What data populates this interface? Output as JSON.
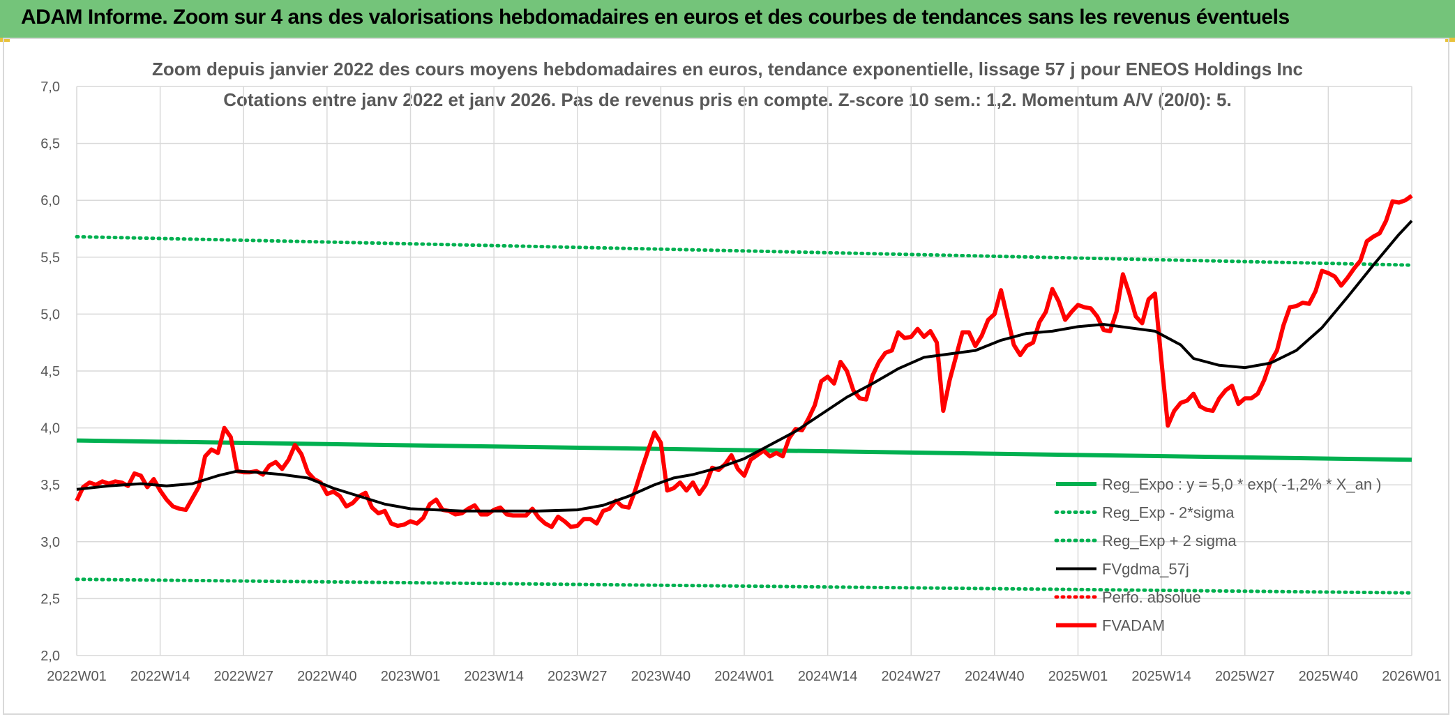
{
  "banner": {
    "title": "ADAM Informe. Zoom sur 4 ans des valorisations hebdomadaires en euros et des courbes de tendances sans les revenus éventuels"
  },
  "colors": {
    "banner_bg": "#74c47a",
    "regression": "#00b050",
    "fvgdma": "#000000",
    "fvadam": "#ff0000",
    "perfo": "#ff0000"
  },
  "chart_data": {
    "type": "line",
    "title": "Zoom depuis janvier 2022 des cours moyens hebdomadaires en euros, tendance exponentielle, lissage 57 j pour ENEOS Holdings Inc",
    "subtitle": "Cotations entre janv 2022 et janv 2026. Pas de revenus pris en compte. Z-score 10 sem.: 1,2. Momentum A/V (20/0): 5.",
    "xlabel": "",
    "ylabel": "",
    "ylim": [
      2.0,
      7.0
    ],
    "yticks": [
      "2,0",
      "2,5",
      "3,0",
      "3,5",
      "4,0",
      "4,5",
      "5,0",
      "5,5",
      "6,0",
      "6,5",
      "7,0"
    ],
    "xticks": [
      "2022W01",
      "2022W14",
      "2022W27",
      "2022W40",
      "2023W01",
      "2023W14",
      "2023W27",
      "2023W40",
      "2024W01",
      "2024W14",
      "2024W27",
      "2024W40",
      "2025W01",
      "2025W14",
      "2025W27",
      "2025W40",
      "2026W01"
    ],
    "grid": true,
    "legend_position": "bottom-right",
    "series": [
      {
        "name": "Reg_Expo : y = 5,0 * exp( -1,2% *  X_an )",
        "style": "solid-thick",
        "color": "#00b050",
        "points": [
          [
            0,
            3.89
          ],
          [
            208,
            3.72
          ]
        ]
      },
      {
        "name": "Reg_Exp - 2*sigma",
        "style": "dotted",
        "color": "#00b050",
        "points": [
          [
            0,
            2.67
          ],
          [
            208,
            2.55
          ]
        ]
      },
      {
        "name": "Reg_Exp + 2 sigma",
        "style": "dotted",
        "color": "#00b050",
        "points": [
          [
            0,
            5.68
          ],
          [
            208,
            5.43
          ]
        ]
      },
      {
        "name": "FVgdma_57j",
        "style": "solid",
        "color": "#000000",
        "points": [
          [
            0,
            3.46
          ],
          [
            5,
            3.49
          ],
          [
            10,
            3.51
          ],
          [
            14,
            3.49
          ],
          [
            18,
            3.51
          ],
          [
            22,
            3.58
          ],
          [
            25,
            3.62
          ],
          [
            28,
            3.61
          ],
          [
            32,
            3.59
          ],
          [
            36,
            3.56
          ],
          [
            40,
            3.47
          ],
          [
            44,
            3.4
          ],
          [
            48,
            3.33
          ],
          [
            52,
            3.29
          ],
          [
            56,
            3.28
          ],
          [
            60,
            3.27
          ],
          [
            66,
            3.27
          ],
          [
            72,
            3.27
          ],
          [
            78,
            3.28
          ],
          [
            82,
            3.32
          ],
          [
            86,
            3.4
          ],
          [
            90,
            3.5
          ],
          [
            93,
            3.56
          ],
          [
            96,
            3.59
          ],
          [
            100,
            3.65
          ],
          [
            104,
            3.73
          ],
          [
            108,
            3.85
          ],
          [
            112,
            3.97
          ],
          [
            116,
            4.12
          ],
          [
            120,
            4.27
          ],
          [
            124,
            4.39
          ],
          [
            128,
            4.52
          ],
          [
            132,
            4.62
          ],
          [
            136,
            4.65
          ],
          [
            140,
            4.68
          ],
          [
            144,
            4.77
          ],
          [
            148,
            4.83
          ],
          [
            152,
            4.85
          ],
          [
            156,
            4.89
          ],
          [
            160,
            4.91
          ],
          [
            164,
            4.88
          ],
          [
            168,
            4.85
          ],
          [
            170,
            4.79
          ],
          [
            172,
            4.73
          ],
          [
            174,
            4.61
          ],
          [
            178,
            4.55
          ],
          [
            182,
            4.53
          ],
          [
            186,
            4.57
          ],
          [
            190,
            4.68
          ],
          [
            194,
            4.88
          ],
          [
            198,
            5.15
          ],
          [
            202,
            5.43
          ],
          [
            206,
            5.7
          ],
          [
            208,
            5.82
          ]
        ]
      },
      {
        "name": "Perfo. absolue",
        "style": "dotted",
        "color": "#ff0000",
        "points": []
      },
      {
        "name": "FVADAM",
        "style": "solid-thick",
        "color": "#ff0000",
        "points": [
          [
            0,
            3.36
          ],
          [
            1,
            3.48
          ],
          [
            2,
            3.52
          ],
          [
            3,
            3.5
          ],
          [
            4,
            3.53
          ],
          [
            5,
            3.51
          ],
          [
            6,
            3.53
          ],
          [
            7,
            3.52
          ],
          [
            8,
            3.49
          ],
          [
            9,
            3.6
          ],
          [
            10,
            3.58
          ],
          [
            11,
            3.48
          ],
          [
            12,
            3.55
          ],
          [
            13,
            3.45
          ],
          [
            14,
            3.37
          ],
          [
            15,
            3.31
          ],
          [
            16,
            3.29
          ],
          [
            17,
            3.28
          ],
          [
            18,
            3.38
          ],
          [
            19,
            3.48
          ],
          [
            20,
            3.75
          ],
          [
            21,
            3.81
          ],
          [
            22,
            3.78
          ],
          [
            23,
            4.0
          ],
          [
            24,
            3.92
          ],
          [
            25,
            3.62
          ],
          [
            26,
            3.61
          ],
          [
            27,
            3.61
          ],
          [
            28,
            3.62
          ],
          [
            29,
            3.59
          ],
          [
            30,
            3.67
          ],
          [
            31,
            3.7
          ],
          [
            32,
            3.64
          ],
          [
            33,
            3.72
          ],
          [
            34,
            3.85
          ],
          [
            35,
            3.77
          ],
          [
            36,
            3.61
          ],
          [
            37,
            3.55
          ],
          [
            38,
            3.52
          ],
          [
            39,
            3.42
          ],
          [
            40,
            3.44
          ],
          [
            41,
            3.4
          ],
          [
            42,
            3.31
          ],
          [
            43,
            3.34
          ],
          [
            44,
            3.4
          ],
          [
            45,
            3.43
          ],
          [
            46,
            3.3
          ],
          [
            47,
            3.25
          ],
          [
            48,
            3.27
          ],
          [
            49,
            3.16
          ],
          [
            50,
            3.14
          ],
          [
            51,
            3.15
          ],
          [
            52,
            3.18
          ],
          [
            53,
            3.16
          ],
          [
            54,
            3.21
          ],
          [
            55,
            3.33
          ],
          [
            56,
            3.37
          ],
          [
            57,
            3.28
          ],
          [
            58,
            3.27
          ],
          [
            59,
            3.24
          ],
          [
            60,
            3.25
          ],
          [
            61,
            3.29
          ],
          [
            62,
            3.32
          ],
          [
            63,
            3.24
          ],
          [
            64,
            3.24
          ],
          [
            65,
            3.28
          ],
          [
            66,
            3.3
          ],
          [
            67,
            3.24
          ],
          [
            68,
            3.23
          ],
          [
            69,
            3.23
          ],
          [
            70,
            3.23
          ],
          [
            71,
            3.29
          ],
          [
            72,
            3.21
          ],
          [
            73,
            3.16
          ],
          [
            74,
            3.13
          ],
          [
            75,
            3.22
          ],
          [
            76,
            3.18
          ],
          [
            77,
            3.13
          ],
          [
            78,
            3.14
          ],
          [
            79,
            3.2
          ],
          [
            80,
            3.2
          ],
          [
            81,
            3.16
          ],
          [
            82,
            3.27
          ],
          [
            83,
            3.29
          ],
          [
            84,
            3.36
          ],
          [
            85,
            3.31
          ],
          [
            86,
            3.3
          ],
          [
            87,
            3.45
          ],
          [
            88,
            3.63
          ],
          [
            89,
            3.8
          ],
          [
            90,
            3.96
          ],
          [
            91,
            3.87
          ],
          [
            92,
            3.45
          ],
          [
            93,
            3.47
          ],
          [
            94,
            3.52
          ],
          [
            95,
            3.45
          ],
          [
            96,
            3.52
          ],
          [
            97,
            3.42
          ],
          [
            98,
            3.5
          ],
          [
            99,
            3.65
          ],
          [
            100,
            3.63
          ],
          [
            101,
            3.68
          ],
          [
            102,
            3.76
          ],
          [
            103,
            3.64
          ],
          [
            104,
            3.58
          ],
          [
            105,
            3.72
          ],
          [
            106,
            3.76
          ],
          [
            107,
            3.8
          ],
          [
            108,
            3.75
          ],
          [
            109,
            3.78
          ],
          [
            110,
            3.75
          ],
          [
            111,
            3.91
          ],
          [
            112,
            3.99
          ],
          [
            113,
            3.98
          ],
          [
            114,
            4.08
          ],
          [
            115,
            4.2
          ],
          [
            116,
            4.41
          ],
          [
            117,
            4.45
          ],
          [
            118,
            4.39
          ],
          [
            119,
            4.58
          ],
          [
            120,
            4.5
          ],
          [
            121,
            4.33
          ],
          [
            122,
            4.26
          ],
          [
            123,
            4.25
          ],
          [
            124,
            4.46
          ],
          [
            125,
            4.58
          ],
          [
            126,
            4.66
          ],
          [
            127,
            4.68
          ],
          [
            128,
            4.84
          ],
          [
            129,
            4.79
          ],
          [
            130,
            4.8
          ],
          [
            131,
            4.87
          ],
          [
            132,
            4.8
          ],
          [
            133,
            4.85
          ],
          [
            134,
            4.75
          ],
          [
            135,
            4.15
          ],
          [
            136,
            4.42
          ],
          [
            137,
            4.63
          ],
          [
            138,
            4.84
          ],
          [
            139,
            4.84
          ],
          [
            140,
            4.72
          ],
          [
            141,
            4.81
          ],
          [
            142,
            4.95
          ],
          [
            143,
            5.0
          ],
          [
            144,
            5.21
          ],
          [
            145,
            4.97
          ],
          [
            146,
            4.73
          ],
          [
            147,
            4.64
          ],
          [
            148,
            4.72
          ],
          [
            149,
            4.75
          ],
          [
            150,
            4.93
          ],
          [
            151,
            5.02
          ],
          [
            152,
            5.22
          ],
          [
            153,
            5.11
          ],
          [
            154,
            4.95
          ],
          [
            155,
            5.02
          ],
          [
            156,
            5.08
          ],
          [
            157,
            5.06
          ],
          [
            158,
            5.05
          ],
          [
            159,
            4.98
          ],
          [
            160,
            4.86
          ],
          [
            161,
            4.85
          ],
          [
            162,
            5.02
          ],
          [
            163,
            5.35
          ],
          [
            164,
            5.18
          ],
          [
            165,
            4.98
          ],
          [
            166,
            4.92
          ],
          [
            167,
            5.13
          ],
          [
            168,
            5.18
          ],
          [
            169,
            4.59
          ],
          [
            170,
            4.02
          ],
          [
            171,
            4.15
          ],
          [
            172,
            4.22
          ],
          [
            173,
            4.24
          ],
          [
            174,
            4.3
          ],
          [
            175,
            4.19
          ],
          [
            176,
            4.16
          ],
          [
            177,
            4.15
          ],
          [
            178,
            4.26
          ],
          [
            179,
            4.33
          ],
          [
            180,
            4.37
          ],
          [
            181,
            4.21
          ],
          [
            182,
            4.26
          ],
          [
            183,
            4.26
          ],
          [
            184,
            4.3
          ],
          [
            185,
            4.42
          ],
          [
            186,
            4.58
          ],
          [
            187,
            4.68
          ],
          [
            188,
            4.9
          ],
          [
            189,
            5.06
          ],
          [
            190,
            5.07
          ],
          [
            191,
            5.1
          ],
          [
            192,
            5.09
          ],
          [
            193,
            5.2
          ],
          [
            194,
            5.38
          ],
          [
            195,
            5.36
          ],
          [
            196,
            5.33
          ],
          [
            197,
            5.25
          ],
          [
            198,
            5.32
          ],
          [
            199,
            5.4
          ],
          [
            200,
            5.47
          ],
          [
            201,
            5.64
          ],
          [
            202,
            5.68
          ],
          [
            203,
            5.71
          ],
          [
            204,
            5.82
          ],
          [
            205,
            5.99
          ],
          [
            206,
            5.98
          ],
          [
            207,
            6.0
          ],
          [
            208,
            6.04
          ]
        ]
      }
    ]
  }
}
